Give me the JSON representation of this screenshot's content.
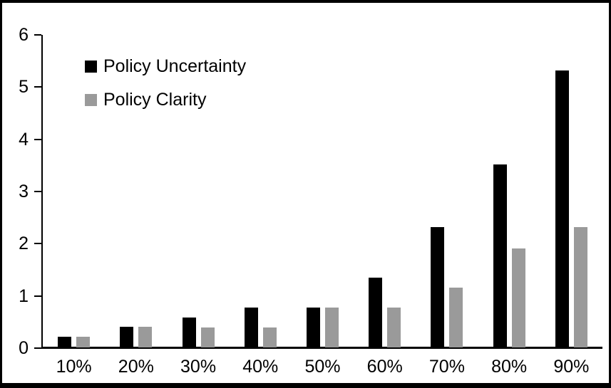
{
  "chart_data": {
    "type": "bar",
    "title": "",
    "categories": [
      "10%",
      "20%",
      "30%",
      "40%",
      "50%",
      "60%",
      "70%",
      "80%",
      "90%"
    ],
    "series": [
      {
        "name": "Policy Uncertainty",
        "color": "#000000",
        "values": [
          0.2,
          0.4,
          0.57,
          0.76,
          0.77,
          1.33,
          2.3,
          3.5,
          5.3
        ]
      },
      {
        "name": "Policy Clarity",
        "color": "#9a9a9a",
        "values": [
          0.2,
          0.4,
          0.38,
          0.38,
          0.77,
          0.77,
          1.15,
          1.9,
          2.3
        ]
      }
    ],
    "xlabel": "",
    "ylabel": "",
    "ylim": [
      0,
      6
    ],
    "yticks": [
      0,
      1,
      2,
      3,
      4,
      5,
      6
    ],
    "grid": false,
    "legend_position": "upper-left"
  },
  "frame": {
    "border_color": "#000000",
    "background_color": "#ffffff"
  }
}
